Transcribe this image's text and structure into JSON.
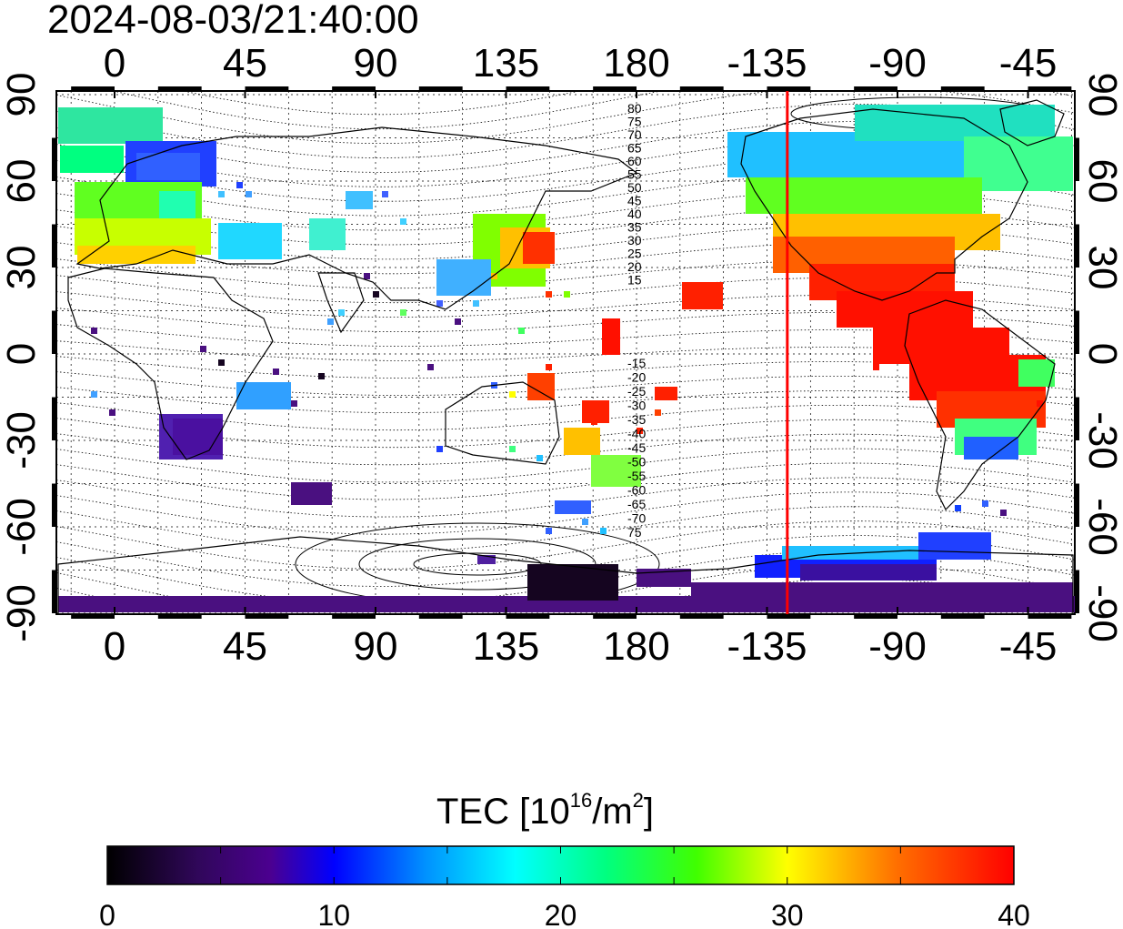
{
  "timestamp": "2024-08-03/21:40:00",
  "map": {
    "x_ticks": [
      0,
      45,
      90,
      135,
      180,
      -135,
      -90,
      -45
    ],
    "x_tick_labels": [
      "0",
      "45",
      "90",
      "135",
      "180",
      "-135",
      "-90",
      "-45"
    ],
    "y_ticks": [
      90,
      60,
      30,
      0,
      -30,
      -60,
      -90
    ],
    "y_tick_labels": [
      "90",
      "60",
      "30",
      "0",
      "-30",
      "-60",
      "-90"
    ],
    "lon_range": [
      -20,
      335
    ],
    "lat_range": [
      -95,
      95
    ],
    "grid": true,
    "red_line_longitude": -128,
    "magnetic_contour_labels_north": [
      "80",
      "75",
      "70",
      "65",
      "60",
      "55",
      "50",
      "45",
      "40",
      "35",
      "30",
      "25",
      "20",
      "15"
    ],
    "magnetic_contour_labels_south": [
      "-15",
      "-20",
      "-25",
      "-30",
      "-35",
      "-40",
      "-45",
      "-50",
      "-55",
      "-60",
      "-65",
      "-70",
      "75"
    ]
  },
  "colorbar": {
    "title": "TEC  [10",
    "title_sup": "16",
    "title_unit": "/m",
    "title_unit_sup": "2",
    "title_end": "]",
    "ticks": [
      0,
      10,
      20,
      30,
      40
    ],
    "tick_labels": [
      "0",
      "10",
      "20",
      "30",
      "40"
    ],
    "range": [
      0,
      40
    ],
    "colors": [
      "#000000",
      "#3a0a6e",
      "#4b0082",
      "#0000ff",
      "#0080ff",
      "#00ffff",
      "#00ff80",
      "#00ff00",
      "#80ff00",
      "#ffff00",
      "#ff8000",
      "#ff0000"
    ]
  }
}
